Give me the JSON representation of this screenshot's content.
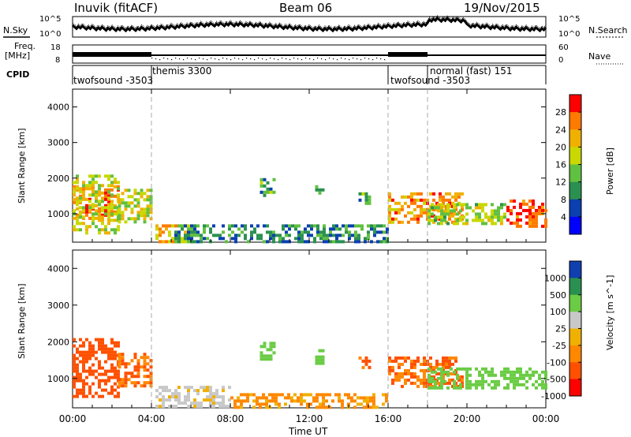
{
  "header": {
    "title": "Inuvik (fitACF)",
    "beam": "Beam 06",
    "date": "19/Nov/2015"
  },
  "noise_panel": {
    "left_label": "N.Sky",
    "right_label": "N.Search",
    "left_ticks": [
      "10^5",
      "10^0"
    ],
    "right_ticks": [
      "10^5",
      "10^0"
    ]
  },
  "freq_panel": {
    "left_label_1": "Freq.",
    "left_label_2": "[MHz]",
    "left_ticks": [
      "18",
      "8"
    ],
    "right_label": "Nave",
    "right_ticks": [
      "60",
      "0"
    ]
  },
  "cpid_panel": {
    "label": "CPID",
    "modes": [
      {
        "name": "twofsound -3503",
        "start_hour": 0
      },
      {
        "name": "themis 3300",
        "start_hour": 4
      },
      {
        "name": "twofsound -3503",
        "start_hour": 16
      },
      {
        "name": "normal (fast) 151",
        "start_hour": 18
      }
    ],
    "dividers_hours": [
      4,
      16,
      18
    ]
  },
  "chart_data": [
    {
      "type": "heatmap",
      "title": "",
      "ylabel": "Slant Range [km]",
      "ylim": [
        200,
        4500
      ],
      "y_ticks": [
        "4000",
        "3000",
        "2000",
        "1000"
      ],
      "y_tick_values": [
        4000,
        3000,
        2000,
        1000
      ],
      "xlim_hours": [
        0,
        24
      ],
      "colorbar": {
        "label": "Power [dB]",
        "ticks": [
          "28",
          "24",
          "20",
          "16",
          "12",
          "8",
          "4"
        ],
        "colors": [
          "#ff0000",
          "#ff7a00",
          "#f0b000",
          "#c8d800",
          "#60c040",
          "#2a9050",
          "#0a40b0",
          "#0000ff"
        ],
        "range": [
          0,
          32
        ]
      },
      "regions": [
        {
          "t": [
            0.0,
            2.3
          ],
          "r": [
            900,
            1800
          ],
          "value": 26
        },
        {
          "t": [
            0.0,
            2.3
          ],
          "r": [
            500,
            2100
          ],
          "value": 18
        },
        {
          "t": [
            2.3,
            4.0
          ],
          "r": [
            800,
            1700
          ],
          "value": 18
        },
        {
          "t": [
            4.2,
            6.0
          ],
          "r": [
            250,
            700
          ],
          "value": 22
        },
        {
          "t": [
            5.0,
            16.0
          ],
          "r": [
            220,
            700
          ],
          "value": 10
        },
        {
          "t": [
            9.5,
            10.2
          ],
          "r": [
            1500,
            2000
          ],
          "value": 12
        },
        {
          "t": [
            12.3,
            12.7
          ],
          "r": [
            1450,
            1800
          ],
          "value": 12
        },
        {
          "t": [
            14.5,
            15.0
          ],
          "r": [
            1300,
            1600
          ],
          "value": 12
        },
        {
          "t": [
            16.0,
            19.8
          ],
          "r": [
            800,
            1600
          ],
          "value": 24
        },
        {
          "t": [
            18.0,
            22.0
          ],
          "r": [
            700,
            1300
          ],
          "value": 16
        },
        {
          "t": [
            22.0,
            24.0
          ],
          "r": [
            650,
            1400
          ],
          "value": 28
        }
      ]
    },
    {
      "type": "heatmap",
      "title": "",
      "ylabel": "Slant Range [km]",
      "ylim": [
        200,
        4500
      ],
      "y_ticks": [
        "4000",
        "3000",
        "2000",
        "1000"
      ],
      "y_tick_values": [
        4000,
        3000,
        2000,
        1000
      ],
      "xlim_hours": [
        0,
        24
      ],
      "x_ticks": [
        "00:00",
        "04:00",
        "08:00",
        "12:00",
        "16:00",
        "20:00",
        "00:00"
      ],
      "x_tick_hours": [
        0,
        4,
        8,
        12,
        16,
        20,
        24
      ],
      "xlabel": "Time UT",
      "colorbar": {
        "label": "Velocity [m s^-1]",
        "ticks": [
          "1000",
          "500",
          "100",
          "25",
          "-25",
          "-100",
          "-500",
          "-1000"
        ],
        "colors": [
          "#1040b0",
          "#2a9050",
          "#6acc44",
          "#c8c8c8",
          "#f0b000",
          "#ff8800",
          "#ff5000",
          "#ff0000"
        ]
      },
      "regions": [
        {
          "t": [
            0.0,
            2.3
          ],
          "r": [
            500,
            2100
          ],
          "value": -200
        },
        {
          "t": [
            2.3,
            4.0
          ],
          "r": [
            800,
            1700
          ],
          "value": -100
        },
        {
          "t": [
            4.2,
            8.0
          ],
          "r": [
            250,
            800
          ],
          "value": 50
        },
        {
          "t": [
            8.0,
            16.0
          ],
          "r": [
            220,
            600
          ],
          "value": -40
        },
        {
          "t": [
            9.5,
            10.2
          ],
          "r": [
            1500,
            2000
          ],
          "value": 200
        },
        {
          "t": [
            12.3,
            12.7
          ],
          "r": [
            1450,
            1800
          ],
          "value": 200
        },
        {
          "t": [
            14.5,
            15.0
          ],
          "r": [
            1300,
            1600
          ],
          "value": -150
        },
        {
          "t": [
            16.0,
            19.8
          ],
          "r": [
            800,
            1600
          ],
          "value": -100
        },
        {
          "t": [
            18.0,
            24.0
          ],
          "r": [
            700,
            1300
          ],
          "value": 200
        }
      ]
    }
  ]
}
